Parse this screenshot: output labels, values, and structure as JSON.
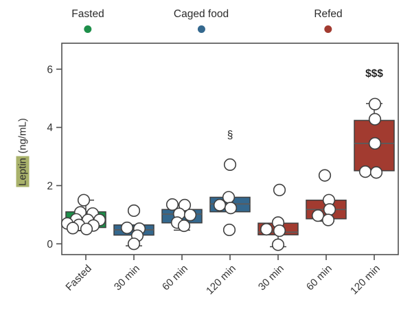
{
  "figure": {
    "ylabel_highlight": "Leptin",
    "ylabel_rest": " (ng/mL)"
  },
  "chart_data": {
    "type": "boxplot-with-points",
    "title": "",
    "ylabel": "Leptin (ng/mL)",
    "yticks": [
      0,
      2,
      4,
      6
    ],
    "ylim": [
      -0.37,
      6.89
    ],
    "grid": false,
    "legend_position": "top",
    "categories": [
      "Fasted",
      "30 min",
      "60 min",
      "120 min",
      "30 min",
      "60 min",
      "120 min"
    ],
    "legend": [
      {
        "label": "Fasted",
        "color": "#1e8f4a"
      },
      {
        "label": "Caged food",
        "color": "#34688e"
      },
      {
        "label": "Refed",
        "color": "#a23b30"
      }
    ],
    "groups": [
      {
        "label": "Fasted",
        "series": "Fasted",
        "color": "#1e8f4a",
        "q1": 0.56,
        "median": 0.8,
        "q3": 1.1,
        "whisker_low": 0.45,
        "whisker_high": 1.5,
        "points": [
          [
            -3,
            1.5
          ],
          [
            -8,
            1.08
          ],
          [
            10,
            1.04
          ],
          [
            -14,
            0.84
          ],
          [
            3,
            0.82
          ],
          [
            20,
            0.82
          ],
          [
            -27,
            0.7
          ],
          [
            -10,
            0.65
          ],
          [
            11,
            0.63
          ],
          [
            -19,
            0.54
          ],
          [
            1,
            0.51
          ]
        ]
      },
      {
        "label": "30 min",
        "series": "Caged food",
        "color": "#34688e",
        "q1": 0.3,
        "median": 0.48,
        "q3": 0.65,
        "whisker_low": -0.07,
        "whisker_high": null,
        "points": [
          [
            0,
            1.14
          ],
          [
            -10,
            0.55
          ],
          [
            8,
            0.52
          ],
          [
            5,
            0.28
          ],
          [
            0,
            0.0
          ]
        ]
      },
      {
        "label": "60 min",
        "series": "Caged food",
        "color": "#34688e",
        "q1": 0.72,
        "median": 1.02,
        "q3": 1.18,
        "whisker_low": 0.47,
        "whisker_high": null,
        "points": [
          [
            -14,
            1.35
          ],
          [
            4,
            1.33
          ],
          [
            -4,
            1.03
          ],
          [
            12,
            0.99
          ],
          [
            -7,
            0.73
          ],
          [
            3,
            0.62
          ]
        ]
      },
      {
        "label": "120 min",
        "series": "Caged food",
        "color": "#34688e",
        "q1": 1.1,
        "median": 1.37,
        "q3": 1.6,
        "whisker_low": null,
        "whisker_high": null,
        "points": [
          [
            0,
            2.72
          ],
          [
            -2,
            1.6
          ],
          [
            -15,
            1.33
          ],
          [
            1,
            1.23
          ],
          [
            -1,
            0.48
          ]
        ]
      },
      {
        "label": "30 min",
        "series": "Refed",
        "color": "#a23b30",
        "q1": 0.31,
        "median": 0.4,
        "q3": 0.71,
        "whisker_low": -0.1,
        "whisker_high": null,
        "points": [
          [
            2,
            1.85
          ],
          [
            0,
            0.73
          ],
          [
            -17,
            0.5
          ],
          [
            2,
            0.45
          ],
          [
            0,
            -0.03
          ]
        ]
      },
      {
        "label": "60 min",
        "series": "Refed",
        "color": "#a23b30",
        "q1": 0.86,
        "median": 1.18,
        "q3": 1.5,
        "whisker_low": 0.78,
        "whisker_high": null,
        "points": [
          [
            -2,
            2.35
          ],
          [
            4,
            1.5
          ],
          [
            5,
            1.18
          ],
          [
            -12,
            0.97
          ],
          [
            3,
            0.82
          ]
        ]
      },
      {
        "label": "120 min",
        "series": "Refed",
        "color": "#a23b30",
        "q1": 2.51,
        "median": 3.45,
        "q3": 4.24,
        "whisker_low": null,
        "whisker_high": 4.82,
        "points": [
          [
            1,
            4.8
          ],
          [
            1,
            4.28
          ],
          [
            1,
            3.45
          ],
          [
            -13,
            2.48
          ],
          [
            3,
            2.45
          ]
        ]
      }
    ],
    "annotations": [
      {
        "text": "§",
        "group": 3,
        "value": 3.62,
        "bold": false
      },
      {
        "text": "$$$",
        "group": 6,
        "value": 5.73,
        "bold": true
      }
    ],
    "style": {
      "box_stroke": "#3f3f3f",
      "median_color": "#5b5b5b",
      "point_fill": "#ffffff",
      "point_stroke": "#3f3f3f",
      "frame_color": "#4f4f4f",
      "text_color": "#333333",
      "highlight_color": "#a9b26b"
    }
  }
}
